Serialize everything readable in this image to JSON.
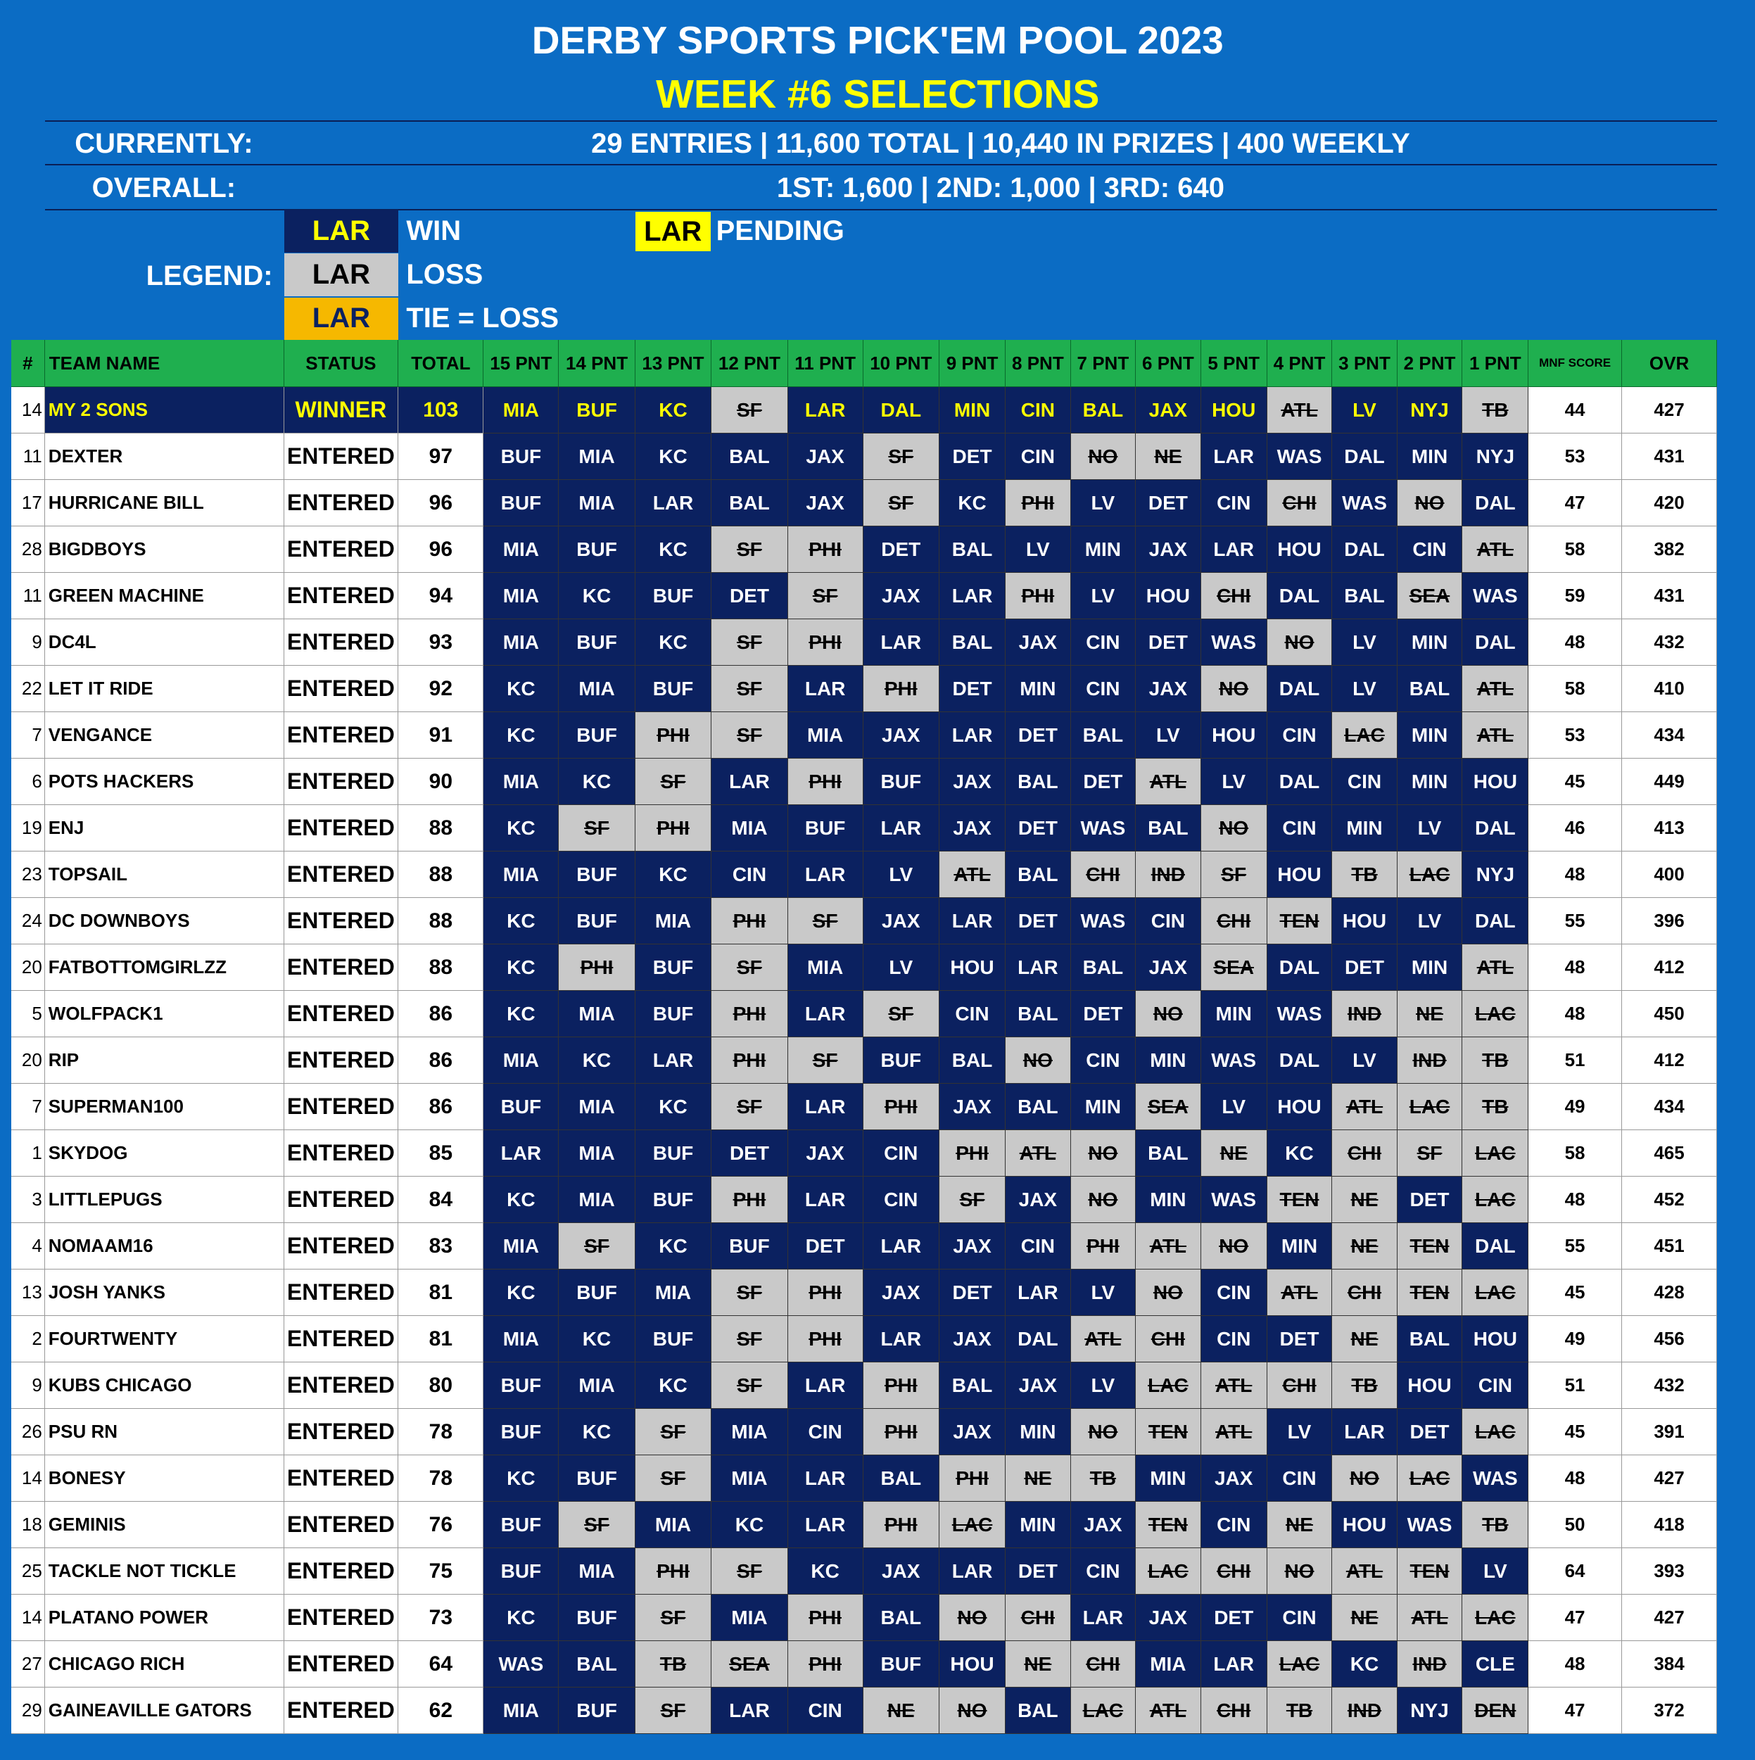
{
  "header": {
    "title": "DERBY SPORTS PICK'EM POOL 2023",
    "subtitle": "WEEK #6 SELECTIONS",
    "currently_label": "CURRENTLY:",
    "currently": "29 ENTRIES | 11,600 TOTAL | 10,440 IN PRIZES | 400 WEEKLY",
    "overall_label": "OVERALL:",
    "overall": "1ST: 1,600 | 2ND: 1,000 | 3RD: 640"
  },
  "legend": {
    "label": "LEGEND:",
    "sample": "LAR",
    "win": "WIN",
    "loss": "LOSS",
    "tie": "TIE = LOSS",
    "pending": "PENDING"
  },
  "table": {
    "columns": [
      "#",
      "TEAM NAME",
      "STATUS",
      "TOTAL",
      "15 PNT",
      "14 PNT",
      "13 PNT",
      "12 PNT",
      "11 PNT",
      "10 PNT",
      "9 PNT",
      "8 PNT",
      "7 PNT",
      "6 PNT",
      "5 PNT",
      "4 PNT",
      "3 PNT",
      "2 PNT",
      "1 PNT",
      "MNF SCORE",
      "OVR"
    ],
    "rows": [
      {
        "rank": 14,
        "team": "MY 2 SONS",
        "status": "WINNER",
        "total": 103,
        "picks": "MIA BUF KC ~SF LAR DAL MIN CIN BAL JAX HOU ~ATL LV NYJ ~TB",
        "mnf": 44,
        "ovr": 427
      },
      {
        "rank": 11,
        "team": "DEXTER",
        "status": "ENTERED",
        "total": 97,
        "picks": "BUF MIA KC BAL JAX ~SF DET CIN ~NO ~NE LAR WAS DAL MIN NYJ",
        "mnf": 53,
        "ovr": 431
      },
      {
        "rank": 17,
        "team": "HURRICANE BILL",
        "status": "ENTERED",
        "total": 96,
        "picks": "BUF MIA LAR BAL JAX ~SF KC ~PHI LV DET CIN ~CHI WAS ~NO DAL",
        "mnf": 47,
        "ovr": 420
      },
      {
        "rank": 28,
        "team": "BIGDBOYS",
        "status": "ENTERED",
        "total": 96,
        "picks": "MIA BUF KC ~SF ~PHI DET BAL LV MIN JAX LAR HOU DAL CIN ~ATL",
        "mnf": 58,
        "ovr": 382
      },
      {
        "rank": 11,
        "team": "GREEN MACHINE",
        "status": "ENTERED",
        "total": 94,
        "picks": "MIA KC BUF DET ~SF JAX LAR ~PHI LV HOU ~CHI DAL BAL ~SEA WAS",
        "mnf": 59,
        "ovr": 431
      },
      {
        "rank": 9,
        "team": "DC4L",
        "status": "ENTERED",
        "total": 93,
        "picks": "MIA BUF KC ~SF ~PHI LAR BAL JAX CIN DET WAS ~NO LV MIN DAL",
        "mnf": 48,
        "ovr": 432
      },
      {
        "rank": 22,
        "team": "LET IT RIDE",
        "status": "ENTERED",
        "total": 92,
        "picks": "KC MIA BUF ~SF LAR ~PHI DET MIN CIN JAX ~NO DAL LV BAL ~ATL",
        "mnf": 58,
        "ovr": 410
      },
      {
        "rank": 7,
        "team": "VENGANCE",
        "status": "ENTERED",
        "total": 91,
        "picks": "KC BUF ~PHI ~SF MIA JAX LAR DET BAL LV HOU CIN ~LAC MIN ~ATL",
        "mnf": 53,
        "ovr": 434
      },
      {
        "rank": 6,
        "team": "POTS HACKERS",
        "status": "ENTERED",
        "total": 90,
        "picks": "MIA KC ~SF LAR ~PHI BUF JAX BAL DET ~ATL LV DAL CIN MIN HOU",
        "mnf": 45,
        "ovr": 449
      },
      {
        "rank": 19,
        "team": "ENJ",
        "status": "ENTERED",
        "total": 88,
        "picks": "KC ~SF ~PHI MIA BUF LAR JAX DET WAS BAL ~NO CIN MIN LV DAL",
        "mnf": 46,
        "ovr": 413
      },
      {
        "rank": 23,
        "team": "TOPSAIL",
        "status": "ENTERED",
        "total": 88,
        "picks": "MIA BUF KC CIN LAR LV ~ATL BAL ~CHI ~IND ~SF HOU ~TB ~LAC NYJ",
        "mnf": 48,
        "ovr": 400
      },
      {
        "rank": 24,
        "team": "DC DOWNBOYS",
        "status": "ENTERED",
        "total": 88,
        "picks": "KC BUF MIA ~PHI ~SF JAX LAR DET WAS CIN ~CHI ~TEN HOU LV DAL",
        "mnf": 55,
        "ovr": 396
      },
      {
        "rank": 20,
        "team": "FATBOTTOMGIRLZZ",
        "status": "ENTERED",
        "total": 88,
        "picks": "KC ~PHI BUF ~SF MIA LV HOU LAR BAL JAX ~SEA DAL DET MIN ~ATL",
        "mnf": 48,
        "ovr": 412
      },
      {
        "rank": 5,
        "team": "WOLFPACK1",
        "status": "ENTERED",
        "total": 86,
        "picks": "KC MIA BUF ~PHI LAR ~SF CIN BAL DET ~NO MIN WAS ~IND ~NE ~LAC",
        "mnf": 48,
        "ovr": 450
      },
      {
        "rank": 20,
        "team": "RIP",
        "status": "ENTERED",
        "total": 86,
        "picks": "MIA KC LAR ~PHI ~SF BUF BAL ~NO CIN MIN WAS DAL LV ~IND ~TB",
        "mnf": 51,
        "ovr": 412
      },
      {
        "rank": 7,
        "team": "SUPERMAN100",
        "status": "ENTERED",
        "total": 86,
        "picks": "BUF MIA KC ~SF LAR ~PHI JAX BAL MIN ~SEA LV HOU ~ATL ~LAC ~TB",
        "mnf": 49,
        "ovr": 434
      },
      {
        "rank": 1,
        "team": "SKYDOG",
        "status": "ENTERED",
        "total": 85,
        "picks": "LAR MIA BUF DET JAX CIN ~PHI ~ATL ~NO BAL ~NE KC ~CHI ~SF ~LAC",
        "mnf": 58,
        "ovr": 465
      },
      {
        "rank": 3,
        "team": "LITTLEPUGS",
        "status": "ENTERED",
        "total": 84,
        "picks": "KC MIA BUF ~PHI LAR CIN ~SF JAX ~NO MIN WAS ~TEN ~NE DET ~LAC",
        "mnf": 48,
        "ovr": 452
      },
      {
        "rank": 4,
        "team": "NOMAAM16",
        "status": "ENTERED",
        "total": 83,
        "picks": "MIA ~SF KC BUF DET LAR JAX CIN ~PHI ~ATL ~NO MIN ~NE ~TEN DAL",
        "mnf": 55,
        "ovr": 451
      },
      {
        "rank": 13,
        "team": "JOSH YANKS",
        "status": "ENTERED",
        "total": 81,
        "picks": "KC BUF MIA ~SF ~PHI JAX DET LAR LV ~NO CIN ~ATL ~CHI ~TEN ~LAC",
        "mnf": 45,
        "ovr": 428
      },
      {
        "rank": 2,
        "team": "FOURTWENTY",
        "status": "ENTERED",
        "total": 81,
        "picks": "MIA KC BUF ~SF ~PHI LAR JAX DAL ~ATL ~CHI CIN DET ~NE BAL HOU",
        "mnf": 49,
        "ovr": 456
      },
      {
        "rank": 9,
        "team": "KUBS CHICAGO",
        "status": "ENTERED",
        "total": 80,
        "picks": "BUF MIA KC ~SF LAR ~PHI BAL JAX LV ~LAC ~ATL ~CHI ~TB HOU CIN",
        "mnf": 51,
        "ovr": 432
      },
      {
        "rank": 26,
        "team": "PSU RN",
        "status": "ENTERED",
        "total": 78,
        "picks": "BUF KC ~SF MIA CIN ~PHI JAX MIN ~NO ~TEN ~ATL LV LAR DET ~LAC",
        "mnf": 45,
        "ovr": 391
      },
      {
        "rank": 14,
        "team": "BONESY",
        "status": "ENTERED",
        "total": 78,
        "picks": "KC BUF ~SF MIA LAR BAL ~PHI ~NE ~TB MIN JAX CIN ~NO ~LAC WAS",
        "mnf": 48,
        "ovr": 427
      },
      {
        "rank": 18,
        "team": "GEMINIS",
        "status": "ENTERED",
        "total": 76,
        "picks": "BUF ~SF MIA KC LAR ~PHI ~LAC MIN JAX ~TEN CIN ~NE HOU WAS ~TB",
        "mnf": 50,
        "ovr": 418
      },
      {
        "rank": 25,
        "team": "TACKLE NOT TICKLE",
        "status": "ENTERED",
        "total": 75,
        "picks": "BUF MIA ~PHI ~SF KC JAX LAR DET CIN ~LAC ~CHI ~NO ~ATL ~TEN LV",
        "mnf": 64,
        "ovr": 393
      },
      {
        "rank": 14,
        "team": "PLATANO POWER",
        "status": "ENTERED",
        "total": 73,
        "picks": "KC BUF ~SF MIA ~PHI BAL ~NO ~CHI LAR JAX DET CIN ~NE ~ATL ~LAC",
        "mnf": 47,
        "ovr": 427
      },
      {
        "rank": 27,
        "team": "CHICAGO RICH",
        "status": "ENTERED",
        "total": 64,
        "picks": "WAS BAL ~TB ~SEA ~PHI BUF HOU ~NE ~CHI MIA LAR ~LAC KC ~IND CLE",
        "mnf": 48,
        "ovr": 384
      },
      {
        "rank": 29,
        "team": "GAINEAVILLE GATORS",
        "status": "ENTERED",
        "total": 62,
        "picks": "MIA BUF ~SF LAR CIN ~NE ~NO BAL ~LAC ~ATL ~CHI ~TB ~IND NYJ ~DEN",
        "mnf": 47,
        "ovr": 372
      }
    ]
  }
}
